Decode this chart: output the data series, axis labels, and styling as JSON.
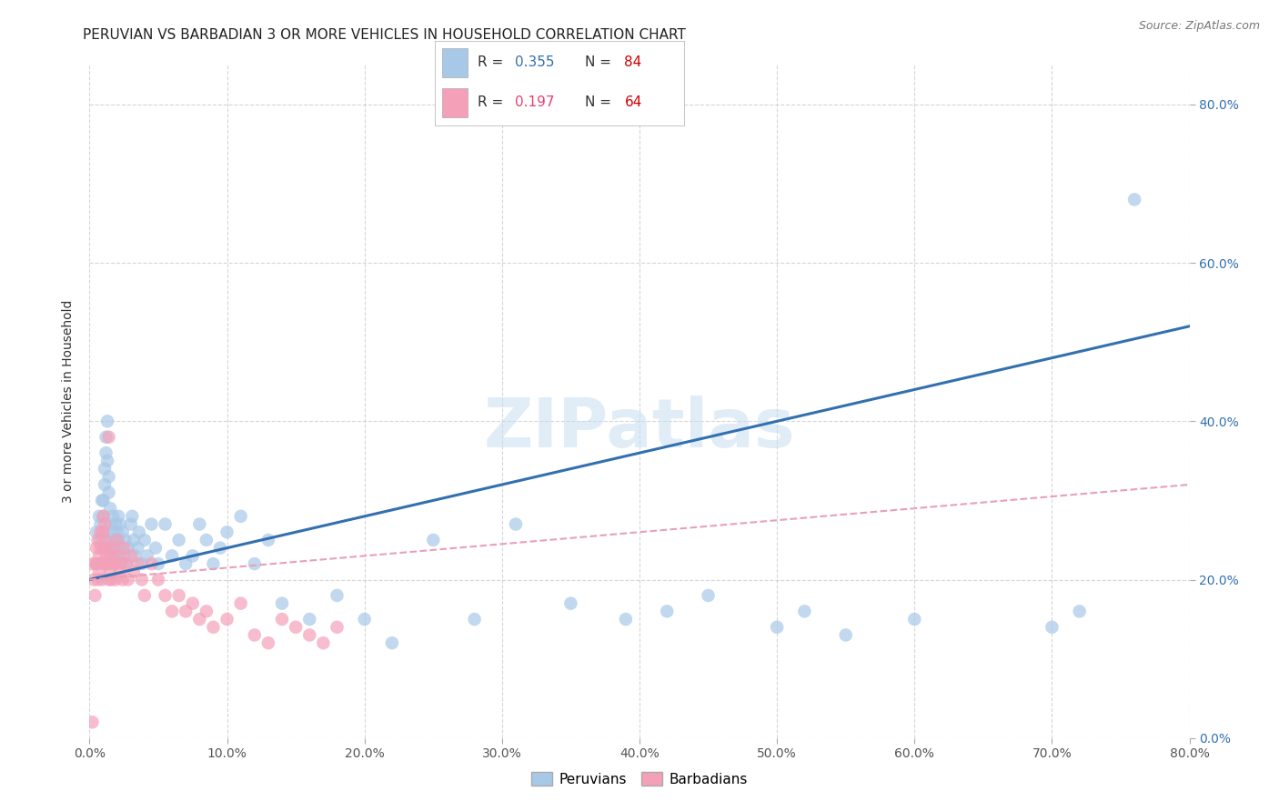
{
  "title": "PERUVIAN VS BARBADIAN 3 OR MORE VEHICLES IN HOUSEHOLD CORRELATION CHART",
  "source": "Source: ZipAtlas.com",
  "xlabel_ticks": [
    "0.0%",
    "10.0%",
    "20.0%",
    "30.0%",
    "40.0%",
    "50.0%",
    "60.0%",
    "70.0%",
    "80.0%"
  ],
  "ylabel_ticks_right": [
    "80.0%",
    "60.0%",
    "40.0%",
    "20.0%",
    "0.0%"
  ],
  "ylabel_label": "3 or more Vehicles in Household",
  "xlim": [
    0,
    0.8
  ],
  "ylim": [
    0.0,
    0.85
  ],
  "watermark": "ZIPatlas",
  "blue_scatter_x": [
    0.005,
    0.005,
    0.007,
    0.008,
    0.008,
    0.009,
    0.01,
    0.01,
    0.01,
    0.01,
    0.011,
    0.011,
    0.012,
    0.012,
    0.013,
    0.013,
    0.014,
    0.014,
    0.015,
    0.015,
    0.015,
    0.016,
    0.016,
    0.017,
    0.017,
    0.018,
    0.018,
    0.019,
    0.019,
    0.02,
    0.02,
    0.021,
    0.021,
    0.022,
    0.023,
    0.024,
    0.025,
    0.026,
    0.027,
    0.028,
    0.03,
    0.031,
    0.032,
    0.033,
    0.035,
    0.036,
    0.038,
    0.04,
    0.042,
    0.045,
    0.048,
    0.05,
    0.055,
    0.06,
    0.065,
    0.07,
    0.075,
    0.08,
    0.085,
    0.09,
    0.095,
    0.1,
    0.11,
    0.12,
    0.13,
    0.14,
    0.16,
    0.18,
    0.2,
    0.22,
    0.25,
    0.28,
    0.31,
    0.35,
    0.39,
    0.42,
    0.45,
    0.5,
    0.52,
    0.55,
    0.6,
    0.7,
    0.72,
    0.76
  ],
  "blue_scatter_y": [
    0.22,
    0.26,
    0.28,
    0.25,
    0.27,
    0.3,
    0.24,
    0.26,
    0.28,
    0.3,
    0.32,
    0.34,
    0.36,
    0.38,
    0.4,
    0.35,
    0.33,
    0.31,
    0.29,
    0.27,
    0.25,
    0.24,
    0.26,
    0.28,
    0.23,
    0.22,
    0.25,
    0.27,
    0.24,
    0.26,
    0.23,
    0.28,
    0.25,
    0.27,
    0.24,
    0.26,
    0.23,
    0.25,
    0.22,
    0.24,
    0.27,
    0.28,
    0.25,
    0.23,
    0.24,
    0.26,
    0.22,
    0.25,
    0.23,
    0.27,
    0.24,
    0.22,
    0.27,
    0.23,
    0.25,
    0.22,
    0.23,
    0.27,
    0.25,
    0.22,
    0.24,
    0.26,
    0.28,
    0.22,
    0.25,
    0.17,
    0.15,
    0.18,
    0.15,
    0.12,
    0.25,
    0.15,
    0.27,
    0.17,
    0.15,
    0.16,
    0.18,
    0.14,
    0.16,
    0.13,
    0.15,
    0.14,
    0.16,
    0.68
  ],
  "pink_scatter_x": [
    0.002,
    0.003,
    0.004,
    0.005,
    0.005,
    0.006,
    0.006,
    0.007,
    0.007,
    0.008,
    0.008,
    0.009,
    0.009,
    0.01,
    0.01,
    0.01,
    0.011,
    0.011,
    0.012,
    0.012,
    0.013,
    0.013,
    0.014,
    0.014,
    0.015,
    0.015,
    0.016,
    0.016,
    0.017,
    0.018,
    0.019,
    0.02,
    0.021,
    0.022,
    0.023,
    0.024,
    0.025,
    0.026,
    0.028,
    0.03,
    0.032,
    0.035,
    0.038,
    0.04,
    0.045,
    0.05,
    0.055,
    0.06,
    0.065,
    0.07,
    0.075,
    0.08,
    0.085,
    0.09,
    0.1,
    0.11,
    0.12,
    0.13,
    0.14,
    0.15,
    0.16,
    0.17,
    0.18,
    0.002
  ],
  "pink_scatter_y": [
    0.22,
    0.2,
    0.18,
    0.24,
    0.22,
    0.2,
    0.25,
    0.23,
    0.21,
    0.26,
    0.24,
    0.22,
    0.2,
    0.28,
    0.26,
    0.24,
    0.27,
    0.25,
    0.23,
    0.22,
    0.24,
    0.22,
    0.2,
    0.38,
    0.23,
    0.21,
    0.22,
    0.2,
    0.24,
    0.22,
    0.2,
    0.25,
    0.23,
    0.21,
    0.22,
    0.2,
    0.24,
    0.22,
    0.2,
    0.23,
    0.21,
    0.22,
    0.2,
    0.18,
    0.22,
    0.2,
    0.18,
    0.16,
    0.18,
    0.16,
    0.17,
    0.15,
    0.16,
    0.14,
    0.15,
    0.17,
    0.13,
    0.12,
    0.15,
    0.14,
    0.13,
    0.12,
    0.14,
    0.02
  ],
  "blue_line_x": [
    0.0,
    0.8
  ],
  "blue_line_y": [
    0.2,
    0.52
  ],
  "pink_dashed_line_x": [
    0.0,
    0.8
  ],
  "pink_dashed_line_y": [
    0.2,
    0.32
  ],
  "blue_scatter_color": "#a8c8e8",
  "pink_scatter_color": "#f4a0b8",
  "blue_line_color": "#3370b0",
  "pink_dashed_color": "#e8a0b8",
  "grid_color": "#cccccc",
  "background_color": "#ffffff",
  "title_fontsize": 11,
  "source_fontsize": 9,
  "axis_label_fontsize": 10,
  "tick_fontsize": 10,
  "legend_R_color": "#3370b0",
  "legend_N_color": "#cc0000",
  "legend_R2_color": "#e84070"
}
